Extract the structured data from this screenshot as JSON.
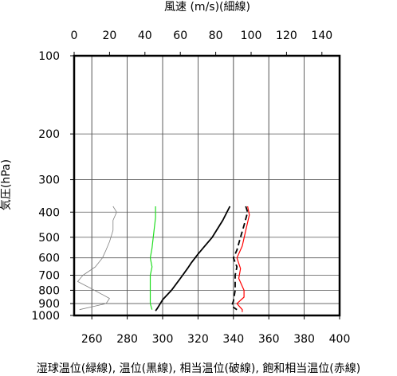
{
  "chart_data": {
    "type": "line",
    "title": "",
    "top_axis": {
      "label": "風速 (m/s)(細線)",
      "ticks": [
        0,
        20,
        40,
        60,
        80,
        100,
        120,
        140
      ],
      "range": [
        0,
        150
      ]
    },
    "bottom_axis": {
      "label": "湿球温位(緑線), 温位(黒線), 相当温位(破線), 飽和相当温位(赤線)",
      "ticks": [
        260,
        280,
        300,
        320,
        340,
        360,
        380,
        400
      ],
      "range": [
        250,
        400
      ]
    },
    "y_axis": {
      "label": "気圧(hPa)",
      "scale": "log",
      "reversed": true,
      "ticks": [
        100,
        200,
        300,
        400,
        500,
        600,
        700,
        800,
        900,
        1000
      ],
      "range": [
        100,
        1000
      ]
    },
    "grid": true,
    "series": [
      {
        "key": "wind_speed",
        "axis": "top",
        "color": "#808080",
        "style": "thin",
        "points": [
          [
            22,
            380
          ],
          [
            24,
            400
          ],
          [
            22,
            430
          ],
          [
            22,
            470
          ],
          [
            20,
            520
          ],
          [
            18,
            560
          ],
          [
            16,
            600
          ],
          [
            12,
            650
          ],
          [
            5,
            700
          ],
          [
            2,
            740
          ],
          [
            10,
            790
          ],
          [
            20,
            860
          ],
          [
            18,
            900
          ],
          [
            3,
            950
          ]
        ]
      },
      {
        "key": "wet_bulb_potential_temperature",
        "axis": "bottom",
        "color": "#22dd22",
        "style": "solid",
        "points": [
          [
            296,
            380
          ],
          [
            296,
            420
          ],
          [
            295,
            480
          ],
          [
            294,
            550
          ],
          [
            293,
            600
          ],
          [
            294,
            650
          ],
          [
            293,
            700
          ],
          [
            293,
            800
          ],
          [
            293,
            900
          ],
          [
            294,
            950
          ]
        ]
      },
      {
        "key": "potential_temperature",
        "axis": "bottom",
        "color": "#000000",
        "style": "solid",
        "points": [
          [
            338,
            380
          ],
          [
            334,
            430
          ],
          [
            328,
            500
          ],
          [
            320,
            580
          ],
          [
            316,
            630
          ],
          [
            314,
            660
          ],
          [
            310,
            720
          ],
          [
            305,
            800
          ],
          [
            300,
            870
          ],
          [
            297,
            940
          ],
          [
            296,
            960
          ]
        ]
      },
      {
        "key": "equivalent_potential_temperature",
        "axis": "bottom",
        "color": "#000000",
        "style": "dashed",
        "points": [
          [
            347,
            380
          ],
          [
            348,
            400
          ],
          [
            346,
            450
          ],
          [
            344,
            500
          ],
          [
            342,
            560
          ],
          [
            340,
            600
          ],
          [
            342,
            650
          ],
          [
            341,
            700
          ],
          [
            341,
            800
          ],
          [
            340,
            880
          ],
          [
            339,
            920
          ],
          [
            342,
            950
          ]
        ]
      },
      {
        "key": "saturated_equivalent_potential_temperature",
        "axis": "bottom",
        "color": "#ff0000",
        "style": "solid",
        "points": [
          [
            348,
            380
          ],
          [
            349,
            410
          ],
          [
            347,
            470
          ],
          [
            345,
            540
          ],
          [
            342,
            600
          ],
          [
            344,
            660
          ],
          [
            343,
            720
          ],
          [
            346,
            800
          ],
          [
            346,
            850
          ],
          [
            342,
            900
          ],
          [
            345,
            950
          ],
          [
            345,
            970
          ]
        ]
      }
    ]
  }
}
